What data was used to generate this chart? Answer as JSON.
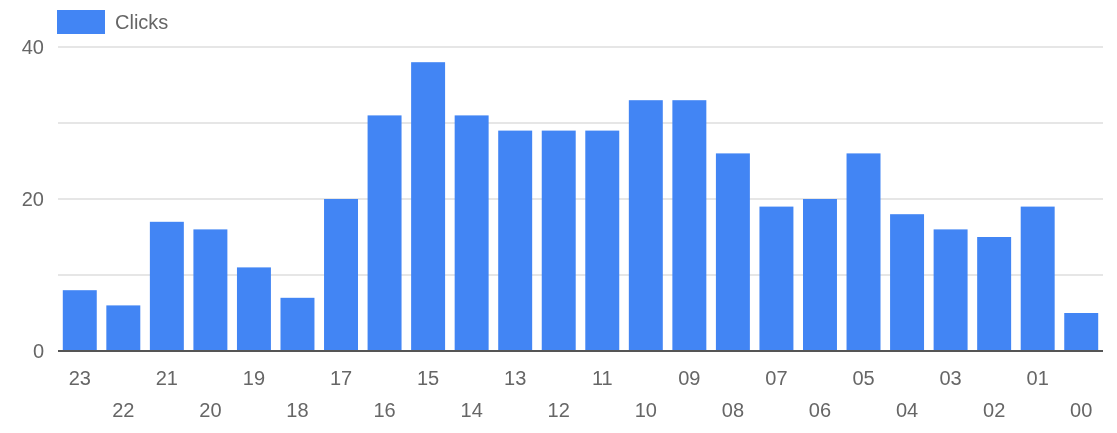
{
  "chart_data": {
    "type": "bar",
    "categories": [
      "23",
      "22",
      "21",
      "20",
      "19",
      "18",
      "17",
      "16",
      "15",
      "14",
      "13",
      "12",
      "11",
      "10",
      "09",
      "08",
      "07",
      "06",
      "05",
      "04",
      "03",
      "02",
      "01",
      "00"
    ],
    "series": [
      {
        "name": "Clicks",
        "color": "#4285f4",
        "values": [
          8,
          6,
          17,
          16,
          11,
          7,
          20,
          31,
          38,
          31,
          29,
          29,
          29,
          33,
          33,
          26,
          19,
          20,
          26,
          18,
          16,
          15,
          19,
          5
        ]
      }
    ],
    "ylim": [
      0,
      40
    ],
    "yticks": [
      0,
      {
        "value": 10,
        "label": null
      },
      20,
      {
        "value": 30,
        "label": null
      },
      40
    ],
    "grid": "y",
    "legend": "top left"
  }
}
